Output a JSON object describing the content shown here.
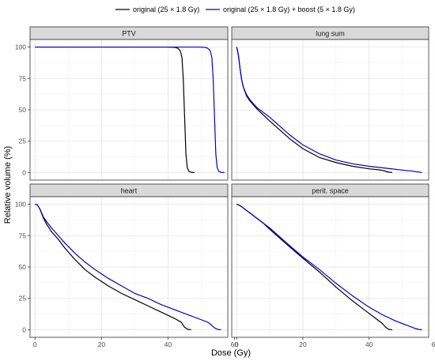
{
  "chart_data": {
    "type": "line",
    "xlabel": "Dose (Gy)",
    "ylabel": "Relative volume (%)",
    "xlim": [
      -1.5,
      58
    ],
    "ylim": [
      -6,
      106
    ],
    "x_ticks": [
      0,
      20,
      40,
      60
    ],
    "y_ticks": [
      0,
      25,
      50,
      75,
      100
    ],
    "grid": true,
    "legend_position": "top",
    "series": [
      {
        "name": "original (25 × 1.8 Gy)",
        "color": "#000000"
      },
      {
        "name": "original (25 × 1.8 Gy) + boost (5 × 1.8 Gy)",
        "color": "#0000cc"
      }
    ],
    "panels": [
      {
        "title": "PTV",
        "lines": [
          {
            "x": [
              0,
              40,
              42,
              43,
              43.7,
              44.2,
              44.6,
              45,
              45.4,
              45.8,
              46.3,
              47,
              48
            ],
            "y": [
              100,
              100,
              99.8,
              99,
              97,
              92,
              75,
              45,
              15,
              4,
              1,
              0.2,
              0
            ]
          },
          {
            "x": [
              0,
              49,
              51,
              52,
              52.7,
              53.2,
              53.6,
              54,
              54.4,
              54.8,
              55.3,
              56,
              57
            ],
            "y": [
              100,
              100,
              99.8,
              99,
              97,
              92,
              75,
              45,
              15,
              4,
              1,
              0.2,
              0
            ]
          }
        ]
      },
      {
        "title": "lung sum",
        "lines": [
          {
            "x": [
              0,
              0.5,
              1,
              1.5,
              2,
              3,
              4,
              5,
              6,
              8,
              10,
              13,
              16,
              20,
              25,
              30,
              35,
              40,
              43,
              44,
              45,
              46,
              47
            ],
            "y": [
              100,
              94,
              83,
              74,
              68,
              61,
              57,
              54,
              51,
              46,
              41,
              34,
              27,
              19,
              12,
              8,
              5,
              3,
              2.2,
              1.8,
              1,
              0.3,
              0
            ]
          },
          {
            "x": [
              0,
              0.5,
              1,
              1.5,
              2,
              3,
              4,
              5,
              6,
              8,
              10,
              13,
              16,
              20,
              25,
              30,
              35,
              40,
              45,
              50,
              53,
              55,
              56
            ],
            "y": [
              100,
              94,
              83,
              74,
              68,
              62,
              58,
              55,
              52,
              48,
              44,
              37,
              30,
              22,
              15,
              10,
              7,
              5,
              3.5,
              2,
              1.2,
              0.4,
              0
            ]
          }
        ]
      },
      {
        "title": "heart",
        "lines": [
          {
            "x": [
              0,
              0.7,
              1.5,
              2.5,
              3.5,
              5,
              7,
              9,
              12,
              15,
              18,
              22,
              26,
              30,
              34,
              38,
              42,
              44,
              45,
              46,
              47
            ],
            "y": [
              100,
              99.5,
              96,
              89,
              84,
              78,
              72,
              65,
              56,
              48,
              42,
              35,
              29,
              24,
              19,
              14,
              9,
              6,
              2,
              0.3,
              0
            ]
          },
          {
            "x": [
              0,
              0.7,
              1.5,
              2.5,
              3.5,
              5,
              7,
              9,
              12,
              15,
              18,
              22,
              26,
              30,
              34,
              38,
              42,
              46,
              50,
              52,
              53,
              54,
              55,
              56
            ],
            "y": [
              100,
              99.5,
              96,
              90,
              86,
              81,
              75,
              69,
              61,
              54,
              48,
              41,
              35,
              29,
              25,
              20,
              16,
              12,
              8,
              6,
              4,
              1.5,
              0.3,
              0
            ]
          }
        ]
      },
      {
        "title": "perit. space",
        "lines": [
          {
            "x": [
              0,
              1,
              2,
              4,
              6,
              8,
              10,
              13,
              16,
              20,
              25,
              30,
              35,
              40,
              42,
              44,
              45,
              46,
              47
            ],
            "y": [
              100,
              99,
              97,
              93,
              89,
              85,
              80,
              73,
              66,
              57,
              46,
              34,
              23,
              13,
              9,
              5,
              2,
              0.3,
              0
            ]
          },
          {
            "x": [
              0,
              1,
              2,
              4,
              6,
              8,
              10,
              13,
              16,
              20,
              25,
              30,
              35,
              40,
              44,
              48,
              52,
              54,
              55,
              56
            ],
            "y": [
              100,
              99,
              97,
              93,
              89,
              85,
              81,
              74,
              67,
              58,
              48,
              37,
              27,
              18,
              12,
              7,
              3,
              1,
              0.3,
              0
            ]
          }
        ]
      }
    ]
  }
}
